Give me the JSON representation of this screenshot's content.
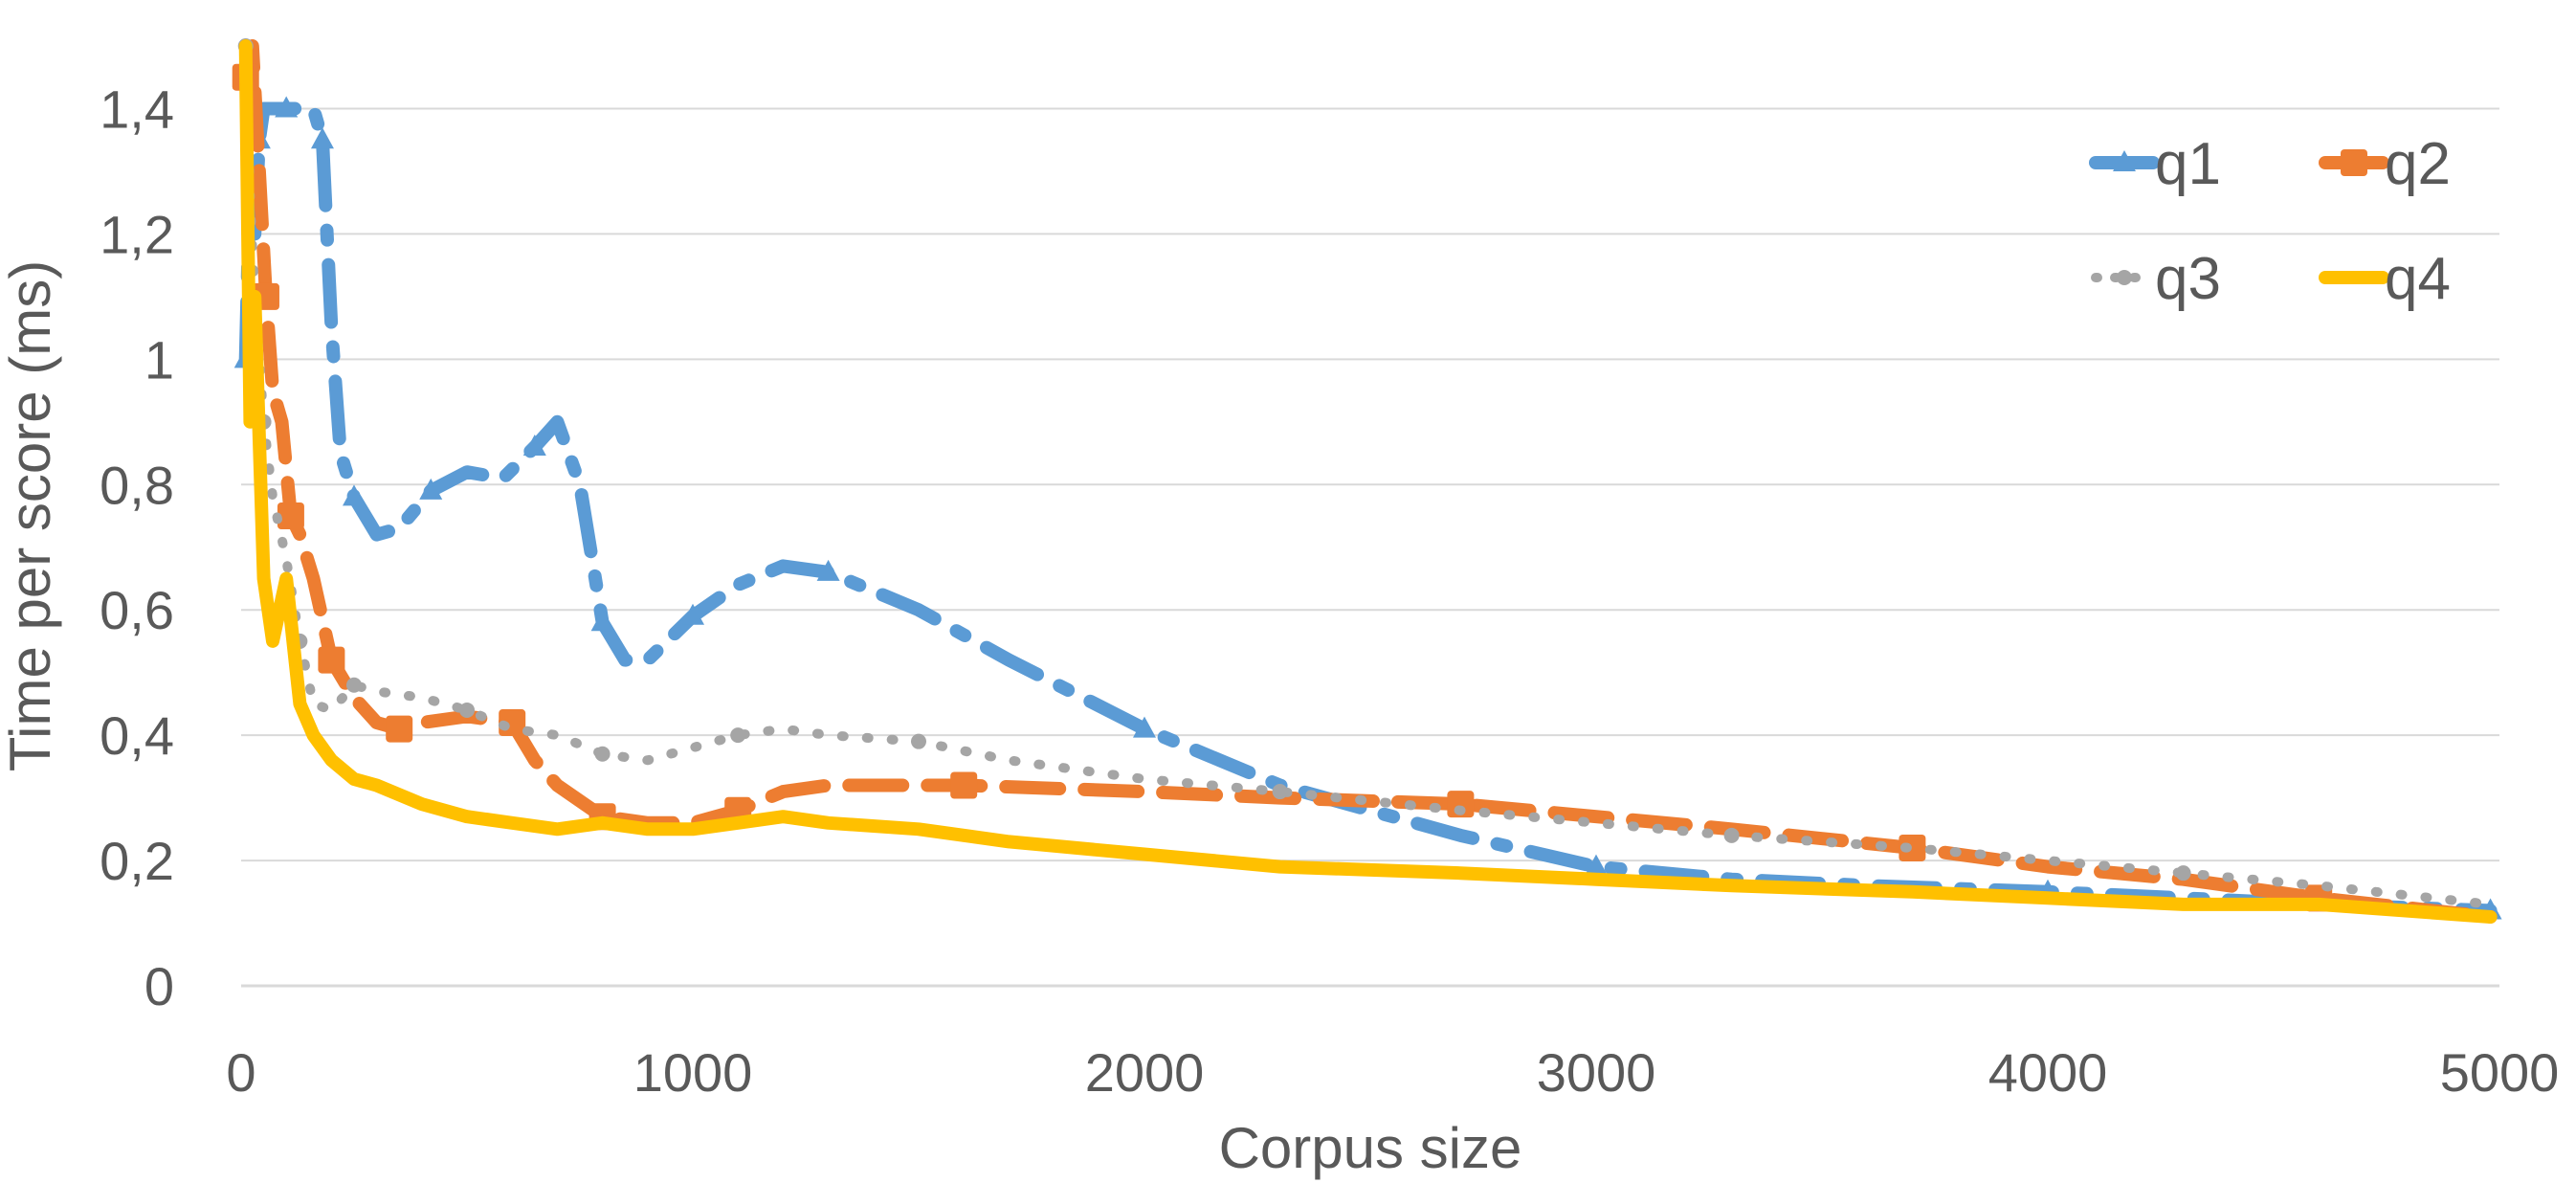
{
  "chart_data": {
    "type": "line",
    "title": "",
    "xlabel": "Corpus size",
    "ylabel": "Time per score (ms)",
    "xlim": [
      0,
      5000
    ],
    "ylim": [
      0,
      1.5
    ],
    "x_ticks": [
      0,
      1000,
      2000,
      3000,
      4000,
      5000
    ],
    "x_tick_labels": [
      "0",
      "1000",
      "2000",
      "3000",
      "4000",
      "5000"
    ],
    "y_ticks": [
      0,
      0.2,
      0.4,
      0.6,
      0.8,
      1.0,
      1.2,
      1.4
    ],
    "y_tick_labels": [
      "0",
      "0,2",
      "0,4",
      "0,6",
      "0,8",
      "1",
      "1,2",
      "1,4"
    ],
    "grid": true,
    "legend": "top-right",
    "series": [
      {
        "name": "q1",
        "color": "#5b9bd5",
        "style": "dashdot",
        "marker": "triangle",
        "x": [
          10,
          20,
          30,
          40,
          50,
          70,
          100,
          130,
          160,
          180,
          200,
          220,
          250,
          300,
          350,
          420,
          500,
          580,
          650,
          700,
          750,
          800,
          850,
          900,
          1000,
          1100,
          1200,
          1300,
          1500,
          1700,
          2000,
          2300,
          2700,
          3000,
          3300,
          3600,
          4000,
          4300,
          4600,
          4980
        ],
        "y": [
          1.0,
          1.3,
          1.2,
          1.35,
          1.4,
          1.4,
          1.4,
          1.4,
          1.4,
          1.35,
          1.05,
          0.85,
          0.78,
          0.72,
          0.73,
          0.79,
          0.82,
          0.81,
          0.86,
          0.9,
          0.8,
          0.58,
          0.52,
          0.52,
          0.59,
          0.64,
          0.67,
          0.66,
          0.6,
          0.52,
          0.41,
          0.32,
          0.24,
          0.19,
          0.17,
          0.16,
          0.15,
          0.14,
          0.13,
          0.12
        ]
      },
      {
        "name": "q2",
        "color": "#ed7d31",
        "style": "longdash",
        "marker": "square",
        "x": [
          10,
          25,
          40,
          55,
          70,
          90,
          110,
          130,
          160,
          200,
          250,
          300,
          350,
          400,
          500,
          600,
          650,
          700,
          800,
          900,
          1000,
          1100,
          1200,
          1300,
          1600,
          2000,
          2300,
          2700,
          3000,
          3300,
          3700,
          4000,
          4300,
          4600,
          4980
        ],
        "y": [
          1.45,
          1.5,
          1.3,
          1.1,
          0.95,
          0.9,
          0.75,
          0.72,
          0.65,
          0.52,
          0.46,
          0.42,
          0.41,
          0.42,
          0.43,
          0.42,
          0.36,
          0.32,
          0.27,
          0.26,
          0.26,
          0.28,
          0.31,
          0.32,
          0.32,
          0.31,
          0.3,
          0.29,
          0.27,
          0.25,
          0.22,
          0.19,
          0.17,
          0.14,
          0.11
        ]
      },
      {
        "name": "q3",
        "color": "#a5a5a5",
        "style": "dotted",
        "marker": "circle",
        "x": [
          10,
          20,
          30,
          50,
          70,
          100,
          130,
          160,
          200,
          250,
          300,
          400,
          500,
          600,
          700,
          800,
          900,
          1000,
          1100,
          1200,
          1300,
          1500,
          1700,
          2000,
          2300,
          2700,
          3000,
          3300,
          3700,
          4000,
          4300,
          4600,
          4980
        ],
        "y": [
          1.5,
          1.25,
          1.1,
          0.9,
          0.78,
          0.68,
          0.55,
          0.45,
          0.44,
          0.48,
          0.47,
          0.46,
          0.44,
          0.41,
          0.4,
          0.37,
          0.36,
          0.38,
          0.4,
          0.41,
          0.4,
          0.39,
          0.36,
          0.33,
          0.31,
          0.28,
          0.26,
          0.24,
          0.22,
          0.2,
          0.18,
          0.16,
          0.13
        ]
      },
      {
        "name": "q4",
        "color": "#ffc000",
        "style": "solid",
        "marker": "none",
        "x": [
          10,
          20,
          30,
          50,
          70,
          100,
          130,
          160,
          200,
          250,
          300,
          400,
          500,
          600,
          700,
          800,
          900,
          1000,
          1100,
          1200,
          1300,
          1500,
          1700,
          2000,
          2300,
          2700,
          3000,
          3300,
          3700,
          4000,
          4300,
          4600,
          4980
        ],
        "y": [
          1.5,
          0.9,
          1.1,
          0.65,
          0.55,
          0.65,
          0.45,
          0.4,
          0.36,
          0.33,
          0.32,
          0.29,
          0.27,
          0.26,
          0.25,
          0.26,
          0.25,
          0.25,
          0.26,
          0.27,
          0.26,
          0.25,
          0.23,
          0.21,
          0.19,
          0.18,
          0.17,
          0.16,
          0.15,
          0.14,
          0.13,
          0.13,
          0.11
        ]
      }
    ]
  }
}
